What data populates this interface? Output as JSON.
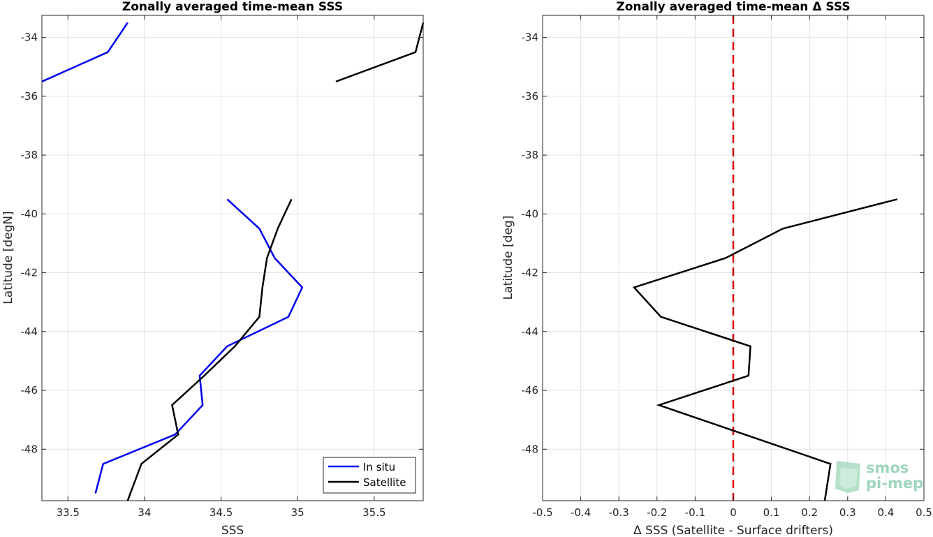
{
  "chart_data": [
    {
      "type": "line",
      "title": "Zonally averaged time-mean SSS",
      "xlabel": "SSS",
      "ylabel": "Latitude [degN]",
      "xlim": [
        33.33,
        35.82
      ],
      "ylim": [
        -49.75,
        -33.25
      ],
      "xticks": [
        33.5,
        34,
        34.5,
        35,
        35.5
      ],
      "xtick_labels": [
        "33.5",
        "34",
        "34.5",
        "35",
        "35.5"
      ],
      "yticks": [
        -48,
        -46,
        -44,
        -42,
        -40,
        -38,
        -36,
        -34
      ],
      "ytick_labels": [
        "-48",
        "-46",
        "-44",
        "-42",
        "-40",
        "-38",
        "-36",
        "-34"
      ],
      "grid": true,
      "legend_position": "bottom-right",
      "series": [
        {
          "name": "In situ",
          "color": "#0000ee",
          "segments": [
            [
              [
                33.89,
                -33.5
              ],
              [
                33.76,
                -34.5
              ],
              [
                33.33,
                -35.5
              ]
            ],
            [
              [
                34.54,
                -39.5
              ],
              [
                34.75,
                -40.5
              ],
              [
                34.85,
                -41.5
              ],
              [
                35.03,
                -42.5
              ],
              [
                34.94,
                -43.5
              ],
              [
                34.54,
                -44.5
              ],
              [
                34.36,
                -45.5
              ],
              [
                34.38,
                -46.5
              ],
              [
                34.2,
                -47.5
              ],
              [
                33.73,
                -48.5
              ],
              [
                33.68,
                -49.5
              ]
            ]
          ]
        },
        {
          "name": "Satellite",
          "color": "#000000",
          "segments": [
            [
              [
                35.82,
                -33.5
              ],
              [
                35.77,
                -34.5
              ],
              [
                35.25,
                -35.5
              ]
            ],
            [
              [
                34.96,
                -39.5
              ],
              [
                34.87,
                -40.5
              ],
              [
                34.8,
                -41.5
              ],
              [
                34.77,
                -42.5
              ],
              [
                34.75,
                -43.5
              ],
              [
                34.59,
                -44.5
              ],
              [
                34.39,
                -45.5
              ],
              [
                34.18,
                -46.5
              ],
              [
                34.22,
                -47.5
              ],
              [
                33.98,
                -48.5
              ],
              [
                33.89,
                -49.75
              ]
            ]
          ]
        }
      ]
    },
    {
      "type": "line",
      "title": "Zonally averaged time-mean Δ SSS",
      "xlabel": "Δ SSS (Satellite - Surface drifters)",
      "ylabel": "Latitude [deg]",
      "xlim": [
        -0.5,
        0.5
      ],
      "ylim": [
        -49.75,
        -33.25
      ],
      "xticks": [
        -0.5,
        -0.4,
        -0.3,
        -0.2,
        -0.1,
        0,
        0.1,
        0.2,
        0.3,
        0.4,
        0.5
      ],
      "xtick_labels": [
        "-0.5",
        "-0.4",
        "-0.3",
        "-0.2",
        "-0.1",
        "0",
        "0.1",
        "0.2",
        "0.3",
        "0.4",
        "0.5"
      ],
      "yticks": [
        -48,
        -46,
        -44,
        -42,
        -40,
        -38,
        -36,
        -34
      ],
      "ytick_labels": [
        "-48",
        "-46",
        "-44",
        "-42",
        "-40",
        "-38",
        "-36",
        "-34"
      ],
      "grid": true,
      "reference_line": {
        "x": 0,
        "color": "#dd0000",
        "style": "dashed"
      },
      "series": [
        {
          "color": "#000000",
          "segments": [
            [
              [
                0.43,
                -39.5
              ],
              [
                0.13,
                -40.5
              ],
              [
                -0.02,
                -41.5
              ],
              [
                -0.26,
                -42.5
              ],
              [
                -0.19,
                -43.5
              ],
              [
                0.045,
                -44.5
              ],
              [
                0.04,
                -45.5
              ],
              [
                -0.195,
                -46.5
              ],
              [
                0.255,
                -48.5
              ],
              [
                0.24,
                -49.75
              ]
            ]
          ]
        }
      ]
    }
  ],
  "watermark": {
    "line1": "smos",
    "line2": "pi-mep",
    "color": "#8fcfb0"
  }
}
